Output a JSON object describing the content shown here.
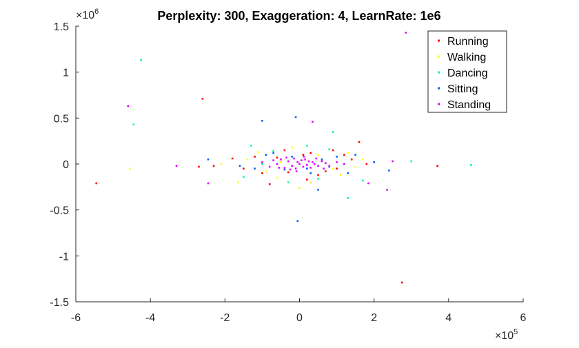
{
  "chart_data": {
    "type": "scatter",
    "title": "Perplexity: 300, Exaggeration: 4, LearnRate: 1e6",
    "xlabel": "",
    "ylabel": "",
    "x_multiplier": "×10",
    "x_multiplier_exp": "5",
    "y_multiplier": "×10",
    "y_multiplier_exp": "6",
    "xlim": [
      -6,
      6
    ],
    "ylim": [
      -1.5,
      1.5
    ],
    "xticks": [
      "-6",
      "-4",
      "-2",
      "0",
      "2",
      "4",
      "6"
    ],
    "yticks": [
      "-1.5",
      "-1",
      "-0.5",
      "0",
      "0.5",
      "1",
      "1.5"
    ],
    "grid": false,
    "legend_position": "top-right",
    "series": [
      {
        "name": "Running",
        "color": "#ff0000",
        "points": [
          [
            -5.45,
            -0.21
          ],
          [
            -2.6,
            0.71
          ],
          [
            -2.7,
            -0.03
          ],
          [
            2.75,
            -1.29
          ],
          [
            3.7,
            -0.02
          ],
          [
            1.6,
            0.24
          ],
          [
            -1.8,
            0.06
          ],
          [
            -1.0,
            -0.1
          ],
          [
            0.9,
            0.15
          ],
          [
            1.4,
            0.05
          ],
          [
            -0.4,
            0.15
          ],
          [
            0.5,
            -0.12
          ],
          [
            1.2,
            0.1
          ],
          [
            -1.5,
            -0.05
          ],
          [
            1.8,
            0.0
          ],
          [
            -0.8,
            -0.22
          ],
          [
            0.2,
            -0.17
          ],
          [
            -2.3,
            -0.02
          ],
          [
            1.0,
            -0.05
          ],
          [
            -0.6,
            0.07
          ],
          [
            0.3,
            0.12
          ],
          [
            -1.2,
            0.08
          ],
          [
            0.7,
            -0.08
          ],
          [
            -0.3,
            -0.09
          ],
          [
            0.1,
            0.1
          ]
        ]
      },
      {
        "name": "Walking",
        "color": "#ffff00",
        "points": [
          [
            -4.55,
            -0.05
          ],
          [
            -1.65,
            -0.2
          ],
          [
            -0.6,
            -0.15
          ],
          [
            0.0,
            -0.26
          ],
          [
            0.9,
            -0.05
          ],
          [
            1.3,
            0.12
          ],
          [
            -1.1,
            0.13
          ],
          [
            -2.1,
            0.0
          ],
          [
            1.7,
            0.05
          ],
          [
            0.5,
            0.1
          ],
          [
            -0.9,
            -0.08
          ],
          [
            1.1,
            -0.12
          ],
          [
            -0.2,
            0.18
          ],
          [
            0.3,
            -0.2
          ],
          [
            -1.4,
            0.05
          ],
          [
            0.6,
            0.05
          ],
          [
            -0.5,
            0.02
          ],
          [
            1.5,
            -0.03
          ]
        ]
      },
      {
        "name": "Dancing",
        "color": "#00ff80",
        "points": [
          [
            -4.25,
            1.13
          ],
          [
            -4.45,
            0.43
          ],
          [
            0.9,
            0.35
          ],
          [
            3.0,
            0.03
          ],
          [
            4.6,
            -0.01
          ],
          [
            1.3,
            -0.37
          ],
          [
            -1.3,
            0.2
          ],
          [
            -0.7,
            0.14
          ],
          [
            1.7,
            -0.18
          ],
          [
            -1.5,
            -0.14
          ],
          [
            0.5,
            -0.16
          ],
          [
            0.8,
            0.16
          ],
          [
            -0.3,
            -0.2
          ],
          [
            1.2,
            0.0
          ],
          [
            -1.0,
            0.0
          ],
          [
            0.2,
            0.2
          ]
        ]
      },
      {
        "name": "Sitting",
        "color": "#0060ff",
        "points": [
          [
            -1.0,
            0.47
          ],
          [
            -0.1,
            0.51
          ],
          [
            -0.05,
            -0.62
          ],
          [
            2.4,
            -0.07
          ],
          [
            -2.45,
            0.05
          ],
          [
            1.5,
            0.1
          ],
          [
            0.5,
            -0.28
          ],
          [
            -0.7,
            0.12
          ],
          [
            0.3,
            -0.1
          ],
          [
            -1.2,
            -0.05
          ],
          [
            0.8,
            -0.03
          ],
          [
            -0.4,
            -0.06
          ],
          [
            1.0,
            0.08
          ],
          [
            -0.9,
            0.1
          ],
          [
            0.6,
            0.05
          ],
          [
            -0.2,
            0.08
          ],
          [
            0.2,
            -0.05
          ],
          [
            1.3,
            -0.1
          ],
          [
            -1.6,
            -0.02
          ],
          [
            2.0,
            0.02
          ]
        ]
      },
      {
        "name": "Standing",
        "color": "#e000ff",
        "points": [
          [
            -4.6,
            0.63
          ],
          [
            2.85,
            1.43
          ],
          [
            -2.45,
            -0.21
          ],
          [
            -3.3,
            -0.02
          ],
          [
            0.35,
            0.46
          ],
          [
            2.35,
            -0.28
          ],
          [
            2.5,
            0.03
          ],
          [
            1.85,
            -0.21
          ],
          [
            -1.0,
            0.02
          ],
          [
            -0.8,
            -0.03
          ],
          [
            -0.6,
            0.0
          ],
          [
            -0.5,
            0.05
          ],
          [
            -0.4,
            -0.04
          ],
          [
            -0.3,
            0.03
          ],
          [
            -0.2,
            -0.02
          ],
          [
            -0.15,
            0.06
          ],
          [
            -0.1,
            -0.05
          ],
          [
            -0.05,
            0.02
          ],
          [
            0.0,
            0.0
          ],
          [
            0.05,
            0.04
          ],
          [
            0.1,
            -0.03
          ],
          [
            0.15,
            0.05
          ],
          [
            0.2,
            -0.01
          ],
          [
            0.25,
            0.03
          ],
          [
            0.3,
            -0.04
          ],
          [
            0.35,
            0.02
          ],
          [
            0.4,
            0.0
          ],
          [
            0.5,
            -0.02
          ],
          [
            0.6,
            0.03
          ],
          [
            0.7,
            0.01
          ],
          [
            0.8,
            -0.02
          ],
          [
            -0.7,
            0.04
          ],
          [
            -0.25,
            -0.06
          ],
          [
            0.45,
            0.06
          ],
          [
            -0.35,
            0.07
          ],
          [
            0.12,
            0.08
          ],
          [
            -0.08,
            -0.08
          ],
          [
            0.65,
            -0.05
          ],
          [
            -0.55,
            -0.04
          ],
          [
            1.0,
            0.02
          ],
          [
            1.2,
            0.0
          ]
        ]
      }
    ]
  }
}
